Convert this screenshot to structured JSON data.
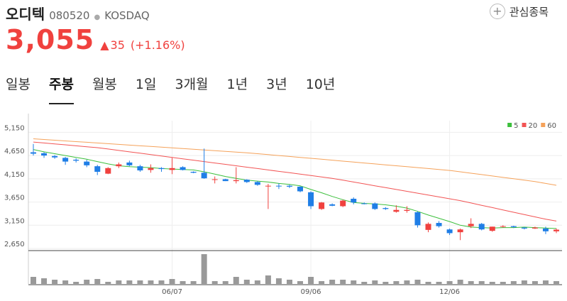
{
  "header": {
    "name": "오디텍",
    "code": "080520",
    "market": "KOSDAQ",
    "favorite": "관심종목",
    "price": "3,055",
    "change": "35",
    "change_pct": "(+1.16%)"
  },
  "tabs": [
    "일봉",
    "주봉",
    "월봉",
    "1일",
    "3개월",
    "1년",
    "3년",
    "10년"
  ],
  "selected_tab": 1,
  "chart_data": {
    "type": "candlestick",
    "categories": [
      null,
      null,
      null,
      null,
      null,
      null,
      null,
      null,
      null,
      null,
      null,
      null,
      null,
      "06/07",
      null,
      null,
      null,
      null,
      null,
      null,
      null,
      null,
      null,
      null,
      null,
      null,
      "09/06",
      null,
      null,
      null,
      null,
      null,
      null,
      null,
      null,
      null,
      null,
      null,
      null,
      "12/06",
      null,
      null,
      null,
      null,
      null,
      null,
      null,
      null,
      null,
      null
    ],
    "open": [
      4720,
      4700,
      4640,
      4600,
      4560,
      4520,
      4420,
      4260,
      4420,
      4500,
      4420,
      4340,
      4380,
      4340,
      4400,
      4300,
      4280,
      4130,
      4140,
      4100,
      4130,
      4080,
      3990,
      4000,
      4000,
      3980,
      3860,
      3500,
      3600,
      3560,
      3720,
      3620,
      3620,
      3520,
      3440,
      3460,
      3430,
      3050,
      3200,
      3060,
      3000,
      3130,
      3180,
      3030,
      3120,
      3130,
      3100,
      3080,
      3080,
      3020
    ],
    "high": [
      4900,
      4720,
      4660,
      4620,
      4590,
      4560,
      4450,
      4400,
      4500,
      4540,
      4450,
      4460,
      4400,
      4600,
      4420,
      4310,
      4800,
      4200,
      4150,
      4400,
      4140,
      4100,
      4040,
      4050,
      4020,
      3990,
      3880,
      3650,
      3620,
      3700,
      3750,
      3640,
      3640,
      3540,
      3580,
      3560,
      3450,
      3210,
      3240,
      3080,
      3080,
      3300,
      3200,
      3120,
      3150,
      3140,
      3110,
      3120,
      3120,
      3080
    ],
    "low": [
      4650,
      4600,
      4580,
      4450,
      4500,
      4400,
      4230,
      4250,
      4380,
      4420,
      4300,
      4280,
      4300,
      4250,
      4330,
      4270,
      4150,
      4050,
      4100,
      4050,
      4060,
      4000,
      3500,
      3930,
      3950,
      3860,
      3500,
      3480,
      3560,
      3540,
      3600,
      3600,
      3480,
      3480,
      3420,
      3420,
      3100,
      3000,
      3100,
      2940,
      2830,
      3090,
      3040,
      3010,
      3100,
      3090,
      3060,
      3070,
      2960,
      2980
    ],
    "close": [
      4690,
      4650,
      4610,
      4520,
      4540,
      4440,
      4300,
      4380,
      4460,
      4440,
      4330,
      4380,
      4360,
      4380,
      4340,
      4280,
      4160,
      4140,
      4100,
      4120,
      4080,
      4020,
      4000,
      3990,
      3980,
      3880,
      3560,
      3640,
      3570,
      3680,
      3640,
      3610,
      3500,
      3500,
      3480,
      3480,
      3150,
      3180,
      3130,
      2980,
      3060,
      3180,
      3060,
      3120,
      3130,
      3110,
      3080,
      3100,
      3020,
      3055
    ],
    "up_color": "#f0413e",
    "down_color": "#1f7ee6",
    "series": [
      {
        "name": "5",
        "color": "#3cbf3c",
        "values": [
          4780,
          4730,
          4690,
          4650,
          4610,
          4570,
          4520,
          4470,
          4430,
          4410,
          4400,
          4390,
          4370,
          4360,
          4350,
          4340,
          4300,
          4250,
          4200,
          4160,
          4120,
          4100,
          4080,
          4050,
          4030,
          4000,
          3920,
          3850,
          3770,
          3700,
          3640,
          3620,
          3610,
          3590,
          3560,
          3520,
          3450,
          3370,
          3300,
          3230,
          3150,
          3110,
          3100,
          3090,
          3100,
          3100,
          3110,
          3100,
          3090,
          3080
        ]
      },
      {
        "name": "20",
        "color": "#f25454",
        "values": [
          4940,
          4920,
          4900,
          4880,
          4860,
          4840,
          4820,
          4790,
          4760,
          4730,
          4700,
          4670,
          4640,
          4610,
          4580,
          4550,
          4520,
          4490,
          4460,
          4430,
          4400,
          4370,
          4340,
          4310,
          4280,
          4250,
          4220,
          4190,
          4160,
          4120,
          4080,
          4040,
          4000,
          3960,
          3920,
          3880,
          3840,
          3800,
          3760,
          3720,
          3680,
          3630,
          3580,
          3530,
          3480,
          3430,
          3380,
          3330,
          3280,
          3240
        ]
      },
      {
        "name": "60",
        "color": "#f5a25a",
        "values": [
          5010,
          4995,
          4980,
          4965,
          4950,
          4935,
          4920,
          4905,
          4890,
          4875,
          4860,
          4845,
          4830,
          4815,
          4800,
          4785,
          4770,
          4755,
          4740,
          4725,
          4710,
          4690,
          4670,
          4650,
          4630,
          4610,
          4590,
          4570,
          4550,
          4530,
          4510,
          4490,
          4470,
          4450,
          4430,
          4410,
          4390,
          4370,
          4350,
          4330,
          4300,
          4270,
          4240,
          4210,
          4180,
          4150,
          4120,
          4090,
          4050,
          4010
        ]
      }
    ],
    "volume": [
      10,
      8,
      6,
      5,
      3,
      6,
      7,
      3,
      5,
      5,
      5,
      5,
      5,
      7,
      4,
      4,
      42,
      4,
      4,
      10,
      6,
      5,
      12,
      8,
      6,
      4,
      10,
      4,
      6,
      6,
      5,
      3,
      5,
      3,
      4,
      5,
      6,
      3,
      3,
      4,
      6,
      4,
      4,
      3,
      3,
      4,
      5,
      4,
      5,
      4
    ],
    "volume_color": "#999999",
    "volume_lim": [
      0,
      45
    ],
    "ylim": [
      2620,
      5400
    ],
    "yticks": [
      {
        "value": 5150,
        "label": "5,150"
      },
      {
        "value": 4650,
        "label": "4,650"
      },
      {
        "value": 4150,
        "label": "4,150"
      },
      {
        "value": 3650,
        "label": "3,650"
      },
      {
        "value": 3150,
        "label": "3,150"
      },
      {
        "value": 2650,
        "label": "2,650"
      }
    ],
    "grid": true,
    "legend": "top-right"
  }
}
